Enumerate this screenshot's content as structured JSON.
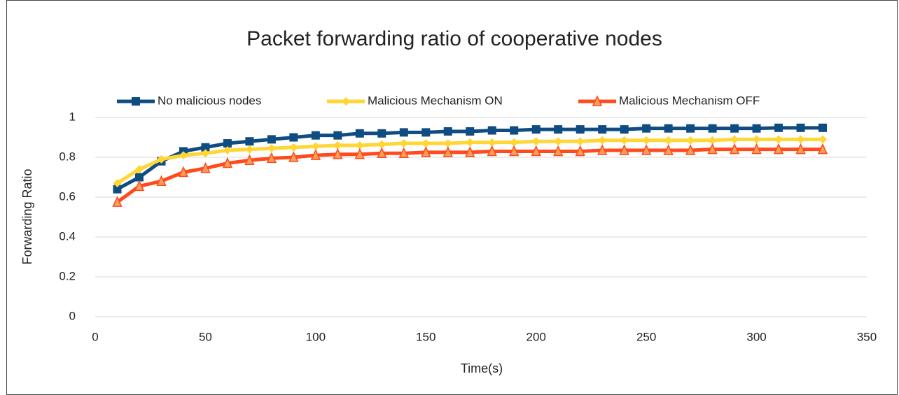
{
  "chart_data": {
    "type": "line",
    "title": "Packet forwarding ratio of cooperative nodes",
    "xlabel": "Time(s)",
    "ylabel": "Forwarding Ratio",
    "x": [
      10,
      20,
      30,
      40,
      50,
      60,
      70,
      80,
      90,
      100,
      110,
      120,
      130,
      140,
      150,
      160,
      170,
      180,
      190,
      200,
      210,
      220,
      230,
      240,
      250,
      260,
      270,
      280,
      290,
      300,
      310,
      320,
      330
    ],
    "series": [
      {
        "name": "No malicious nodes",
        "color": "#0f4c81",
        "marker": "square",
        "values": [
          0.64,
          0.7,
          0.78,
          0.83,
          0.85,
          0.87,
          0.88,
          0.89,
          0.9,
          0.91,
          0.91,
          0.92,
          0.92,
          0.925,
          0.925,
          0.93,
          0.93,
          0.935,
          0.935,
          0.94,
          0.94,
          0.94,
          0.94,
          0.94,
          0.945,
          0.945,
          0.945,
          0.945,
          0.945,
          0.945,
          0.948,
          0.948,
          0.948
        ]
      },
      {
        "name": "Malicious Mechanism ON",
        "color": "#ffd633",
        "marker": "diamond",
        "values": [
          0.67,
          0.74,
          0.79,
          0.81,
          0.82,
          0.835,
          0.84,
          0.845,
          0.85,
          0.855,
          0.86,
          0.86,
          0.865,
          0.87,
          0.87,
          0.87,
          0.875,
          0.875,
          0.875,
          0.88,
          0.88,
          0.88,
          0.885,
          0.885,
          0.885,
          0.885,
          0.885,
          0.885,
          0.89,
          0.89,
          0.89,
          0.89,
          0.89
        ]
      },
      {
        "name": "Malicious Mechanism OFF",
        "color": "#ff4a1c",
        "marker": "triangle",
        "values": [
          0.575,
          0.655,
          0.68,
          0.725,
          0.745,
          0.77,
          0.785,
          0.795,
          0.8,
          0.81,
          0.815,
          0.815,
          0.82,
          0.82,
          0.825,
          0.825,
          0.825,
          0.83,
          0.83,
          0.83,
          0.83,
          0.83,
          0.835,
          0.835,
          0.835,
          0.835,
          0.835,
          0.84,
          0.84,
          0.84,
          0.84,
          0.84,
          0.84
        ]
      }
    ],
    "xlim": [
      0,
      350
    ],
    "xticks": [
      0,
      50,
      100,
      150,
      200,
      250,
      300,
      350
    ],
    "ylim": [
      0,
      1
    ],
    "yticks": [
      0,
      0.2,
      0.4,
      0.6,
      0.8,
      1
    ],
    "grid": true,
    "legend": "top"
  }
}
